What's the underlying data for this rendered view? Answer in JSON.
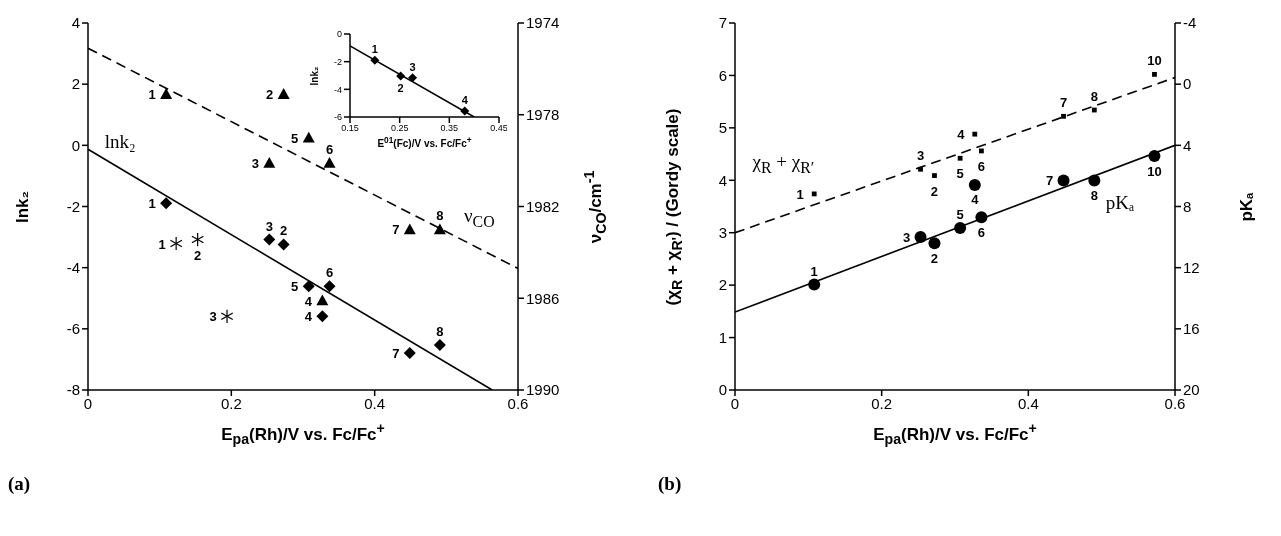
{
  "chart_data": [
    {
      "type": "scatter",
      "title": "(a)",
      "xlabel": "E$_{pa}$(Rh)/V vs. Fc/Fc$^{+}$",
      "ylabel": "lnk₂",
      "y2label": "ν$_{CO}$/cm$^{-1}$",
      "xlim": [
        0,
        0.6
      ],
      "xticks": [
        0,
        0.2,
        0.4,
        0.6
      ],
      "ylim": [
        -8,
        4
      ],
      "yticks": [
        -8,
        -6,
        -4,
        -2,
        0,
        2,
        4
      ],
      "y2lim": [
        1990,
        1974
      ],
      "y2ticks": [
        1974,
        1978,
        1982,
        1986,
        1990
      ],
      "annotations": [
        "lnk₂",
        "ν$_{CO}$",
        {
          "text": "1",
          "x": 0.109,
          "y": 1.68
        },
        {
          "text": "2",
          "x": 0.273,
          "y": 1.68
        },
        {
          "text": "3",
          "x": 0.253,
          "y": -0.58
        },
        {
          "text": "4",
          "x": 0.327,
          "y": -5.08
        },
        {
          "text": "5",
          "x": 0.308,
          "y": 0.25
        },
        {
          "text": "6",
          "x": 0.337,
          "y": -0.58
        },
        {
          "text": "7",
          "x": 0.449,
          "y": -2.75
        },
        {
          "text": "8",
          "x": 0.491,
          "y": -2.75
        },
        {
          "text": "1",
          "x": 0.109,
          "y": -1.89
        },
        {
          "text": "2",
          "x": 0.273,
          "y": -3.24
        },
        {
          "text": "3",
          "x": 0.253,
          "y": -3.08
        },
        {
          "text": "4",
          "x": 0.327,
          "y": -5.59
        },
        {
          "text": "5",
          "x": 0.308,
          "y": -4.61
        },
        {
          "text": "6",
          "x": 0.337,
          "y": -4.61
        },
        {
          "text": "7",
          "x": 0.449,
          "y": -6.79
        },
        {
          "text": "8",
          "x": 0.491,
          "y": -6.53
        },
        {
          "text": "1",
          "x": 0.123,
          "y": -3.21
        },
        {
          "text": "2",
          "x": 0.153,
          "y": -3.08
        },
        {
          "text": "3",
          "x": 0.194,
          "y": -5.59
        }
      ],
      "series": [
        {
          "marker": "triangle",
          "axis": "y2",
          "color": "#000000",
          "x": [
            0.109,
            0.273,
            0.253,
            0.327,
            0.308,
            0.337,
            0.449,
            0.491
          ],
          "values": [
            1977.1,
            1977.1,
            1980.1,
            1986.1,
            1979.0,
            1980.1,
            1983.0,
            1983.0
          ]
        },
        {
          "type": "line",
          "line_style": "dashed",
          "axis": "y2",
          "color": "#000000",
          "x": [
            0,
            0.6
          ],
          "values": [
            1975.1,
            1984.7
          ]
        },
        {
          "marker": "diamond",
          "color": "#000000",
          "x": [
            0.109,
            0.273,
            0.253,
            0.327,
            0.308,
            0.337,
            0.449,
            0.491
          ],
          "values": [
            -1.89,
            -3.24,
            -3.08,
            -5.59,
            -4.61,
            -4.61,
            -6.79,
            -6.53
          ]
        },
        {
          "marker": "cross",
          "color": "#000000",
          "x": [
            0.123,
            0.153,
            0.194
          ],
          "values": [
            -3.21,
            -3.08,
            -5.59
          ]
        },
        {
          "type": "line",
          "line_style": "solid",
          "color": "#000000",
          "x": [
            0,
            0.564
          ],
          "values": [
            -0.13,
            -8
          ]
        }
      ]
    },
    {
      "type": "scatter",
      "xlabel": "E$^{01}$(Fc)/V vs. Fc/Fc$^{+}$",
      "ylabel": "lnk₂",
      "xlim": [
        0.15,
        0.45
      ],
      "xticks": [
        0.15,
        0.25,
        0.35,
        0.45
      ],
      "ylim": [
        -6,
        0
      ],
      "yticks": [
        -6,
        -4,
        -2,
        0
      ],
      "annotations": [
        {
          "text": "1",
          "x": 0.2,
          "y": -1.9
        },
        {
          "text": "2",
          "x": 0.252,
          "y": -3.04
        },
        {
          "text": "3",
          "x": 0.276,
          "y": -3.16
        },
        {
          "text": "4",
          "x": 0.381,
          "y": -5.56
        }
      ],
      "series": [
        {
          "marker": "diamond",
          "color": "#000000",
          "x": [
            0.2,
            0.252,
            0.276,
            0.381
          ],
          "values": [
            -1.9,
            -3.04,
            -3.16,
            -5.56
          ]
        },
        {
          "type": "line",
          "line_style": "solid",
          "color": "#000000",
          "x": [
            0.15,
            0.4
          ],
          "values": [
            -0.86,
            -6
          ]
        }
      ]
    },
    {
      "type": "scatter",
      "title": "(b)",
      "xlabel": "E$_{pa}$(Rh)/V vs. Fc/Fc$^{+}$",
      "ylabel": "(χ$_{R}$ + χ$_{R'}$) / (Gordy scale)",
      "y2label": "pKₐ",
      "xlim": [
        0,
        0.6
      ],
      "xticks": [
        0,
        0.2,
        0.4,
        0.6
      ],
      "ylim": [
        0,
        7
      ],
      "yticks": [
        0,
        1,
        2,
        3,
        4,
        5,
        6,
        7
      ],
      "y2lim": [
        20,
        -4
      ],
      "y2ticks": [
        -4,
        0,
        4,
        8,
        12,
        16,
        20
      ],
      "annotations": [
        "χ$_{R}$ + χ$_{R′}$",
        "pKₐ",
        {
          "text": "1",
          "x": 0.108,
          "y": 3.74
        },
        {
          "text": "2",
          "x": 0.272,
          "y": 4.09
        },
        {
          "text": "3",
          "x": 0.253,
          "y": 4.21
        },
        {
          "text": "4",
          "x": 0.327,
          "y": 4.88
        },
        {
          "text": "5",
          "x": 0.307,
          "y": 4.42
        },
        {
          "text": "6",
          "x": 0.336,
          "y": 4.56
        },
        {
          "text": "7",
          "x": 0.448,
          "y": 5.22
        },
        {
          "text": "8",
          "x": 0.49,
          "y": 5.34
        },
        {
          "text": "10",
          "x": 0.572,
          "y": 6.02
        },
        {
          "text": "1",
          "x": 0.108,
          "y": 2.01
        },
        {
          "text": "2",
          "x": 0.272,
          "y": 2.8
        },
        {
          "text": "3",
          "x": 0.253,
          "y": 2.92
        },
        {
          "text": "4",
          "x": 0.327,
          "y": 3.92
        },
        {
          "text": "5",
          "x": 0.307,
          "y": 3.09
        },
        {
          "text": "6",
          "x": 0.336,
          "y": 3.3
        },
        {
          "text": "7",
          "x": 0.448,
          "y": 4.0
        },
        {
          "text": "8",
          "x": 0.49,
          "y": 4.0
        },
        {
          "text": "10",
          "x": 0.572,
          "y": 4.46
        }
      ],
      "series": [
        {
          "marker": "square",
          "color": "#000000",
          "x": [
            0.108,
            0.272,
            0.253,
            0.327,
            0.307,
            0.336,
            0.448,
            0.49,
            0.572
          ],
          "values": [
            3.74,
            4.09,
            4.21,
            4.88,
            4.42,
            4.56,
            5.22,
            5.34,
            6.02
          ]
        },
        {
          "type": "line",
          "line_style": "dashed",
          "color": "#000000",
          "x": [
            0,
            0.6
          ],
          "values": [
            3.0,
            5.96
          ]
        },
        {
          "marker": "circle",
          "axis": "y2",
          "color": "#000000",
          "x": [
            0.108,
            0.272,
            0.253,
            0.327,
            0.307,
            0.336,
            0.448,
            0.49,
            0.572
          ],
          "values": [
            13.1,
            10.4,
            10.0,
            6.6,
            9.4,
            8.7,
            6.3,
            6.3,
            4.7
          ]
        },
        {
          "type": "line",
          "line_style": "solid",
          "axis": "y2",
          "color": "#000000",
          "x": [
            0,
            0.6
          ],
          "values": [
            14.9,
            4.0
          ]
        }
      ]
    }
  ]
}
